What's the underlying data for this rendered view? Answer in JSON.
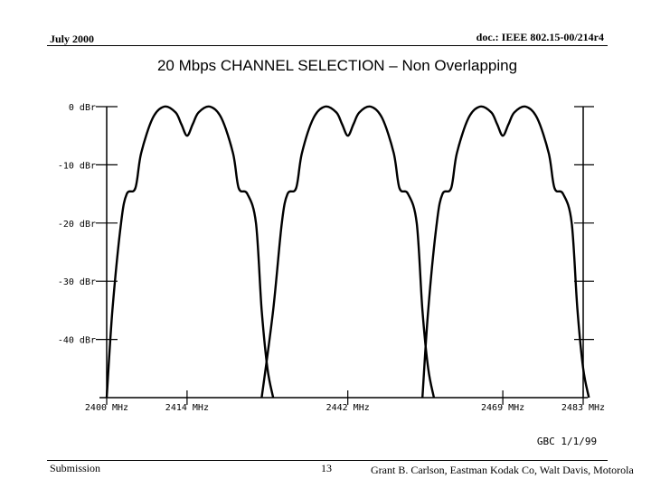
{
  "header": {
    "date": "July 2000",
    "doc_id": "doc.: IEEE 802.15-00/214r4"
  },
  "footer": {
    "submission": "Submission",
    "page": "13",
    "authors": "Grant B. Carlson, Eastman Kodak Co, Walt Davis, Motorola"
  },
  "chart_data": {
    "type": "line",
    "title": "20 Mbps CHANNEL SELECTION – Non Overlapping",
    "signature": "GBC 1/1/99",
    "xlim": [
      2400,
      2483
    ],
    "ylim": [
      -50,
      0
    ],
    "y_ticks": [
      {
        "value": 0,
        "label": "0 dBr"
      },
      {
        "value": -10,
        "label": "-10 dBr"
      },
      {
        "value": -20,
        "label": "-20 dBr"
      },
      {
        "value": -30,
        "label": "-30 dBr"
      },
      {
        "value": -40,
        "label": "-40 dBr"
      }
    ],
    "x_ticks": [
      {
        "value": 2400,
        "label": "2400 MHz"
      },
      {
        "value": 2414,
        "label": "2414 MHz"
      },
      {
        "value": 2442,
        "label": "2442 MHz"
      },
      {
        "value": 2469,
        "label": "2469 MHz"
      },
      {
        "value": 2483,
        "label": "2483 MHz"
      }
    ],
    "grid": false,
    "colors": {
      "line": "#000000",
      "background": "#ffffff"
    },
    "series": [
      {
        "center": 2414,
        "x": [
          2400,
          2401,
          2402.5,
          2403.5,
          2405,
          2406,
          2408,
          2410,
          2412,
          2413,
          2414,
          2415,
          2416,
          2418,
          2420,
          2422,
          2423,
          2424.5,
          2426,
          2427,
          2428,
          2429
        ],
        "y": [
          -50,
          -35,
          -20,
          -15,
          -14,
          -8,
          -2,
          0,
          -1,
          -3,
          -5,
          -3,
          -1,
          0,
          -2,
          -8,
          -14,
          -15,
          -20,
          -35,
          -45,
          -50
        ]
      },
      {
        "center": 2442,
        "x": [
          2427,
          2429,
          2430.5,
          2431.5,
          2433,
          2434,
          2436,
          2438,
          2440,
          2441,
          2442,
          2443,
          2444,
          2446,
          2448,
          2450,
          2451,
          2452.5,
          2454,
          2455,
          2456,
          2457
        ],
        "y": [
          -50,
          -35,
          -20,
          -15,
          -14,
          -8,
          -2,
          0,
          -1,
          -3,
          -5,
          -3,
          -1,
          0,
          -2,
          -8,
          -14,
          -15,
          -20,
          -35,
          -45,
          -50
        ]
      },
      {
        "center": 2469,
        "x": [
          2455,
          2456,
          2457.5,
          2458.5,
          2460,
          2461,
          2463,
          2465,
          2467,
          2468,
          2469,
          2470,
          2471,
          2473,
          2475,
          2477,
          2478,
          2479.5,
          2481,
          2482,
          2483,
          2484
        ],
        "y": [
          -50,
          -35,
          -20,
          -15,
          -14,
          -8,
          -2,
          0,
          -1,
          -3,
          -5,
          -3,
          -1,
          0,
          -2,
          -8,
          -14,
          -15,
          -20,
          -35,
          -45,
          -50
        ]
      }
    ]
  }
}
